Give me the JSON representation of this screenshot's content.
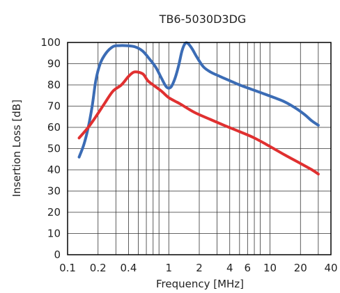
{
  "chart_data": {
    "type": "line",
    "title": "TB6-5030D3DG",
    "xlabel": "Frequency [MHz]",
    "ylabel": "Insertion Loss [dB]",
    "x_scale": "log",
    "xlim": [
      0.1,
      40
    ],
    "ylim": [
      0,
      100
    ],
    "grid": true,
    "x_ticks": [
      0.1,
      0.2,
      0.4,
      1,
      2,
      4,
      6,
      10,
      20,
      40
    ],
    "x_tick_labels": [
      "0.1",
      "0.2",
      "0.4",
      "1",
      "2",
      "4",
      "6",
      "10",
      "20",
      "40"
    ],
    "y_ticks": [
      0,
      10,
      20,
      30,
      40,
      50,
      60,
      70,
      80,
      90,
      100
    ],
    "y_tick_labels": [
      "0",
      "10",
      "20",
      "30",
      "40",
      "50",
      "60",
      "70",
      "80",
      "90",
      "100"
    ],
    "x_grid": [
      0.1,
      0.2,
      0.3,
      0.4,
      0.5,
      0.6,
      0.7,
      0.8,
      1,
      2,
      3,
      4,
      5,
      6,
      7,
      8,
      10,
      20,
      30,
      40
    ],
    "series": [
      {
        "color": "#3b6cb5",
        "x": [
          0.13,
          0.145,
          0.16,
          0.175,
          0.19,
          0.21,
          0.24,
          0.28,
          0.32,
          0.38,
          0.46,
          0.55,
          0.65,
          0.75,
          0.85,
          0.95,
          1.05,
          1.15,
          1.25,
          1.35,
          1.45,
          1.55,
          1.7,
          1.9,
          2.2,
          2.6,
          3.2,
          4,
          5,
          6.5,
          8.5,
          11,
          14,
          18,
          22,
          26,
          30
        ],
        "y": [
          46,
          52,
          60,
          70,
          82,
          90,
          95,
          98,
          98.5,
          98.5,
          98,
          96,
          92,
          88,
          83,
          79,
          79,
          83,
          89,
          96,
          99.5,
          99.5,
          97,
          93,
          88.5,
          86,
          84,
          82,
          80,
          78,
          76,
          74,
          72,
          69,
          66,
          63,
          61
        ]
      },
      {
        "color": "#e03030",
        "x": [
          0.13,
          0.16,
          0.19,
          0.23,
          0.28,
          0.34,
          0.4,
          0.45,
          0.5,
          0.56,
          0.62,
          0.7,
          0.85,
          1,
          1.3,
          1.8,
          2.5,
          3.5,
          5,
          7,
          10,
          14,
          20,
          26,
          30
        ],
        "y": [
          55,
          60,
          65,
          71,
          77,
          80,
          84,
          86,
          86,
          85,
          82,
          80,
          77,
          74,
          71,
          67,
          64,
          61,
          58,
          55,
          51,
          47,
          43,
          40,
          38
        ]
      }
    ]
  }
}
